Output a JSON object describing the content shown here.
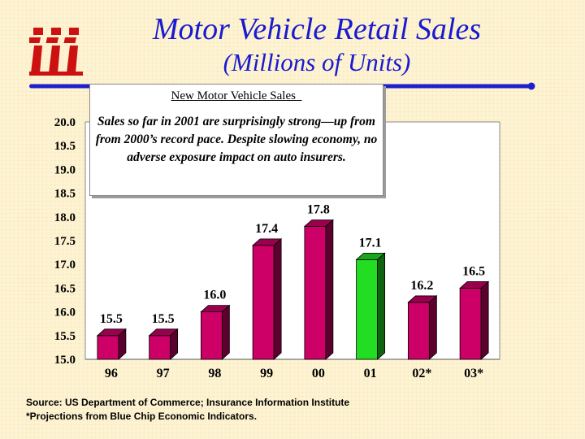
{
  "header": {
    "title": "Motor Vehicle Retail Sales",
    "subtitle": "(Millions of Units)"
  },
  "logo": {
    "icon": "iii-logo",
    "letters": "iii",
    "color": "#cc1111"
  },
  "rule": {
    "color": "#1f1fcc"
  },
  "callout": {
    "heading": "New Motor Vehicle Sales  ",
    "text": "Sales so far in 2001 are surprisingly strong—up from from 2000’s record pace. Despite slowing economy, no adverse exposure impact on auto insurers."
  },
  "footnotes": {
    "source": "Source: US Department of Commerce; Insurance Information Institute",
    "projection": "*Projections from Blue Chip Economic Indicators."
  },
  "chart_data": {
    "type": "bar",
    "categories": [
      "96",
      "97",
      "98",
      "99",
      "00",
      "01",
      "02*",
      "03*"
    ],
    "values": [
      15.5,
      15.5,
      16.0,
      17.4,
      17.8,
      17.1,
      16.2,
      16.5
    ],
    "data_labels": [
      "15.5",
      "15.5",
      "16.0",
      "17.4",
      "17.8",
      "17.1",
      "16.2",
      "16.5"
    ],
    "ylim": [
      15.0,
      20.0
    ],
    "yticks": [
      "15.0",
      "15.5",
      "16.0",
      "16.5",
      "17.0",
      "17.5",
      "18.0",
      "18.5",
      "19.0",
      "19.5",
      "20.0"
    ],
    "title": "",
    "xlabel": "",
    "ylabel": "",
    "colors": {
      "default": "#cc0066",
      "highlight": "#22dd22",
      "highlight_category": "01"
    },
    "grid": false,
    "legend": "none"
  }
}
